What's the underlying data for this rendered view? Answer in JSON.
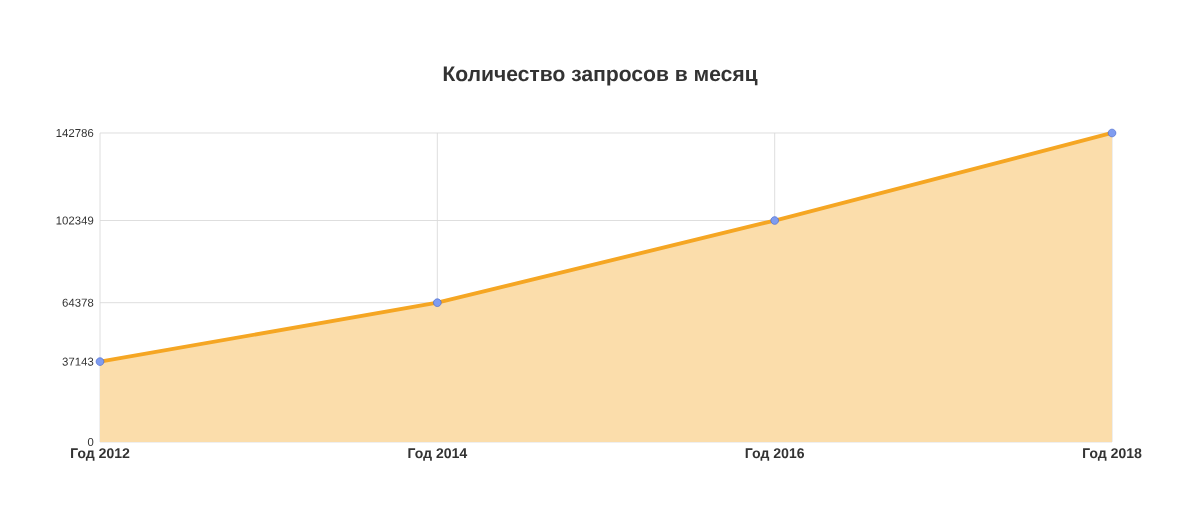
{
  "chart_data": {
    "type": "area",
    "title": "Количество запросов в месяц",
    "categories": [
      "Год 2012",
      "Год 2014",
      "Год 2016",
      "Год 2018"
    ],
    "values": [
      37143,
      64378,
      102349,
      142786
    ],
    "color": "#f5a623",
    "ylim": [
      0,
      142786
    ],
    "yticks": [
      0,
      37143,
      64378,
      102349,
      142786
    ],
    "grid": true,
    "marker": "circle",
    "line_style": "solid"
  }
}
